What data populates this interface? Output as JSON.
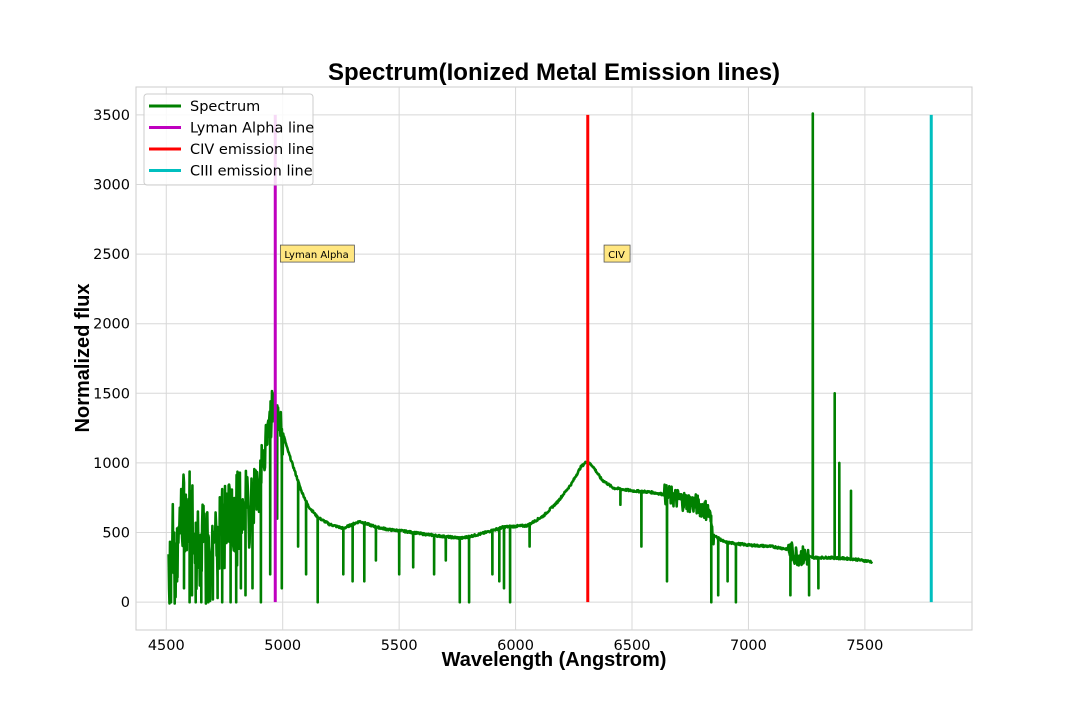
{
  "chart_data": {
    "type": "line",
    "title": "Spectrum(Ionized Metal Emission lines)",
    "xlabel": "Wavelength (Angstrom)",
    "ylabel": "Normalized flux",
    "xlim": [
      4370,
      7960
    ],
    "ylim": [
      -200,
      3700
    ],
    "x_ticks": [
      4500,
      5000,
      5500,
      6000,
      6500,
      7000,
      7500
    ],
    "y_ticks": [
      0,
      500,
      1000,
      1500,
      2000,
      2500,
      3000,
      3500
    ],
    "grid": true,
    "legend_position": "top-left",
    "series": [
      {
        "name": "Spectrum",
        "color": "#008000",
        "kind": "noisy-spectrum",
        "continuum": [
          [
            4510,
            350
          ],
          [
            4560,
            600
          ],
          [
            4600,
            700
          ],
          [
            4650,
            450
          ],
          [
            4700,
            500
          ],
          [
            4750,
            600
          ],
          [
            4800,
            680
          ],
          [
            4850,
            760
          ],
          [
            4900,
            950
          ],
          [
            4930,
            1150
          ],
          [
            4955,
            1380
          ],
          [
            4968,
            1440
          ],
          [
            4980,
            1400
          ],
          [
            4995,
            1250
          ],
          [
            5020,
            1100
          ],
          [
            5050,
            950
          ],
          [
            5080,
            800
          ],
          [
            5110,
            690
          ],
          [
            5150,
            610
          ],
          [
            5200,
            560
          ],
          [
            5260,
            530
          ],
          [
            5330,
            580
          ],
          [
            5400,
            540
          ],
          [
            5460,
            520
          ],
          [
            5520,
            510
          ],
          [
            5600,
            490
          ],
          [
            5700,
            470
          ],
          [
            5770,
            460
          ],
          [
            5850,
            490
          ],
          [
            5950,
            540
          ],
          [
            6050,
            550
          ],
          [
            6120,
            620
          ],
          [
            6180,
            720
          ],
          [
            6240,
            850
          ],
          [
            6280,
            970
          ],
          [
            6305,
            1010
          ],
          [
            6330,
            980
          ],
          [
            6370,
            880
          ],
          [
            6420,
            820
          ],
          [
            6500,
            800
          ],
          [
            6580,
            790
          ],
          [
            6650,
            770
          ],
          [
            6700,
            740
          ],
          [
            6780,
            700
          ],
          [
            6830,
            650
          ],
          [
            6850,
            480
          ],
          [
            6900,
            430
          ],
          [
            7000,
            410
          ],
          [
            7100,
            400
          ],
          [
            7170,
            380
          ],
          [
            7200,
            340
          ],
          [
            7280,
            320
          ],
          [
            7350,
            320
          ],
          [
            7450,
            310
          ],
          [
            7530,
            290
          ]
        ],
        "noise_bands": [
          [
            4510,
            4680,
            600
          ],
          [
            4680,
            4860,
            500
          ],
          [
            4860,
            4960,
            300
          ],
          [
            4960,
            5000,
            250
          ],
          [
            6640,
            6850,
            150
          ],
          [
            7170,
            7260,
            150
          ]
        ],
        "dips": [
          [
            4520,
            0
          ],
          [
            4545,
            150
          ],
          [
            4575,
            100
          ],
          [
            4600,
            0
          ],
          [
            4610,
            50
          ],
          [
            4625,
            0
          ],
          [
            4650,
            0
          ],
          [
            4680,
            0
          ],
          [
            4700,
            20
          ],
          [
            4720,
            30
          ],
          [
            4740,
            0
          ],
          [
            4775,
            0
          ],
          [
            4800,
            0
          ],
          [
            4820,
            100
          ],
          [
            4840,
            50
          ],
          [
            4870,
            100
          ],
          [
            4905,
            0
          ],
          [
            4945,
            200
          ],
          [
            4975,
            600
          ],
          [
            4995,
            100
          ],
          [
            5065,
            400
          ],
          [
            5100,
            200
          ],
          [
            5150,
            0
          ],
          [
            5260,
            200
          ],
          [
            5300,
            150
          ],
          [
            5350,
            150
          ],
          [
            5400,
            300
          ],
          [
            5500,
            200
          ],
          [
            5560,
            250
          ],
          [
            5650,
            200
          ],
          [
            5700,
            300
          ],
          [
            5760,
            0
          ],
          [
            5800,
            0
          ],
          [
            5900,
            200
          ],
          [
            5930,
            150
          ],
          [
            5950,
            100
          ],
          [
            5975,
            0
          ],
          [
            6060,
            400
          ],
          [
            6450,
            700
          ],
          [
            6540,
            400
          ],
          [
            6650,
            150
          ],
          [
            6840,
            0
          ],
          [
            6870,
            50
          ],
          [
            6910,
            150
          ],
          [
            6945,
            0
          ],
          [
            7180,
            50
          ],
          [
            7260,
            50
          ],
          [
            7300,
            100
          ]
        ],
        "spikes": [
          [
            7275,
            3510
          ],
          [
            7370,
            1500
          ],
          [
            7390,
            1000
          ],
          [
            7440,
            800
          ]
        ]
      },
      {
        "name": "Lyman Alpha line",
        "color": "#bf00bf",
        "kind": "vline",
        "x": 4968,
        "y_range": [
          0,
          3500
        ]
      },
      {
        "name": "CIV emission line",
        "color": "#ff0000",
        "kind": "vline",
        "x": 6310,
        "y_range": [
          0,
          3500
        ]
      },
      {
        "name": "CIII emission line",
        "color": "#00bfbf",
        "kind": "vline",
        "x": 7785,
        "y_range": [
          0,
          3500
        ]
      }
    ],
    "annotations": [
      {
        "text": "Lyman Alpha",
        "x": 4990,
        "y": 2500
      },
      {
        "text": "CIV",
        "x": 6380,
        "y": 2500
      }
    ]
  }
}
